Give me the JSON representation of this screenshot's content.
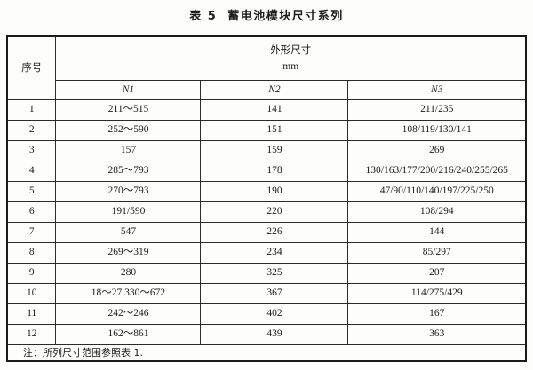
{
  "title": "表 5  蓄电池模块尺寸系列",
  "table": {
    "serial_header": "序号",
    "group_header_line1": "外形尺寸",
    "group_header_line2": "mm",
    "columns": [
      "N1",
      "N2",
      "N3"
    ],
    "rows": [
      {
        "no": "1",
        "n1": "211～515",
        "n2": "141",
        "n3": "211/235"
      },
      {
        "no": "2",
        "n1": "252～590",
        "n2": "151",
        "n3": "108/119/130/141"
      },
      {
        "no": "3",
        "n1": "157",
        "n2": "159",
        "n3": "269"
      },
      {
        "no": "4",
        "n1": "285～793",
        "n2": "178",
        "n3": "130/163/177/200/216/240/255/265"
      },
      {
        "no": "5",
        "n1": "270～793",
        "n2": "190",
        "n3": "47/90/110/140/197/225/250"
      },
      {
        "no": "6",
        "n1": "191/590",
        "n2": "220",
        "n3": "108/294"
      },
      {
        "no": "7",
        "n1": "547",
        "n2": "226",
        "n3": "144"
      },
      {
        "no": "8",
        "n1": "269～319",
        "n2": "234",
        "n3": "85/297"
      },
      {
        "no": "9",
        "n1": "280",
        "n2": "325",
        "n3": "207"
      },
      {
        "no": "10",
        "n1": "18～27.330～672",
        "n2": "367",
        "n3": "114/275/429"
      },
      {
        "no": "11",
        "n1": "242～246",
        "n2": "402",
        "n3": "167"
      },
      {
        "no": "12",
        "n1": "162～861",
        "n2": "439",
        "n3": "363"
      }
    ],
    "note": "注：所列尺寸范围参照表 1."
  }
}
